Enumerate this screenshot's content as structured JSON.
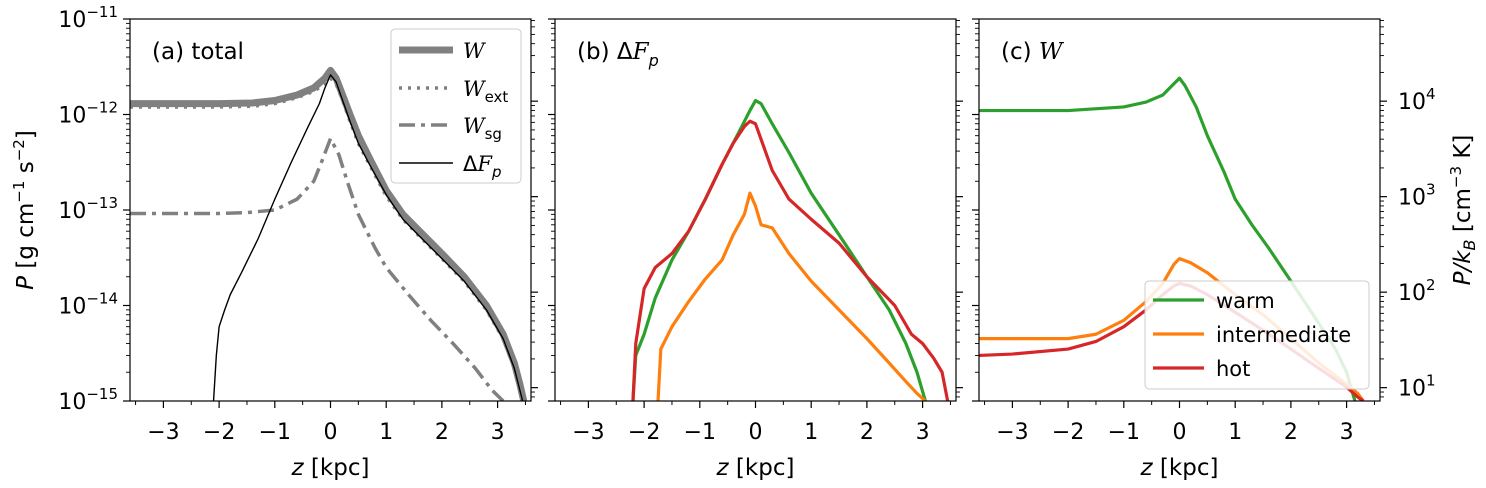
{
  "chart_data": [
    {
      "type": "line",
      "panel": "(a) total",
      "panel_label": "(a) total",
      "xlabel": "z [kpc]",
      "ylabel": "P [g cm⁻¹ s⁻²]",
      "xlim": [
        -3.6,
        3.6
      ],
      "ylim": [
        1e-15,
        1e-11
      ],
      "yscale": "log",
      "x_ticks": [
        -3,
        -2,
        -1,
        0,
        1,
        2,
        3
      ],
      "y_ticks": [
        1e-15,
        1e-14,
        1e-13,
        1e-12,
        1e-11
      ],
      "y_tick_labels": [
        "10⁻¹⁵",
        "10⁻¹⁴",
        "10⁻¹³",
        "10⁻¹²",
        "10⁻¹¹"
      ],
      "legend_position": "top-right",
      "series": [
        {
          "name": "𝒲",
          "color": "#808080",
          "style": "thick-solid",
          "x": [
            -3.6,
            -2.0,
            -1.4,
            -1.0,
            -0.6,
            -0.3,
            -0.1,
            0.0,
            0.1,
            0.2,
            0.35,
            0.5,
            0.7,
            1.0,
            1.3,
            1.6,
            2.0,
            2.4,
            2.8,
            3.1,
            3.3,
            3.4,
            3.47
          ],
          "y": [
            1.3e-12,
            1.3e-12,
            1.32e-12,
            1.4e-12,
            1.6e-12,
            1.9e-12,
            2.4e-12,
            2.9e-12,
            2.4e-12,
            1.7e-12,
            1e-12,
            6e-13,
            3.5e-13,
            1.6e-13,
            9e-14,
            6e-14,
            3.5e-14,
            2e-14,
            1e-14,
            5e-15,
            2.5e-15,
            1.5e-15,
            1e-15
          ]
        },
        {
          "name": "𝒲ext",
          "color": "#808080",
          "style": "dotted",
          "x": [
            -3.6,
            -2.0,
            -1.4,
            -1.0,
            -0.6,
            -0.3,
            -0.1,
            0.0,
            0.1,
            0.2,
            0.35,
            0.5,
            0.7,
            1.0,
            1.3,
            1.6,
            2.0,
            2.4,
            2.8,
            3.1,
            3.3,
            3.4,
            3.45
          ],
          "y": [
            1.2e-12,
            1.2e-12,
            1.22e-12,
            1.3e-12,
            1.5e-12,
            1.75e-12,
            2.1e-12,
            2.4e-12,
            2.1e-12,
            1.5e-12,
            8.5e-13,
            5e-13,
            3e-13,
            1.4e-13,
            8e-14,
            5.3e-14,
            3.1e-14,
            1.8e-14,
            9e-15,
            4.5e-15,
            2.2e-15,
            1.3e-15,
            1e-15
          ]
        },
        {
          "name": "𝒲sg",
          "color": "#808080",
          "style": "dashdot",
          "x": [
            -3.6,
            -2.0,
            -1.5,
            -1.0,
            -0.6,
            -0.3,
            -0.15,
            0.0,
            0.15,
            0.3,
            0.5,
            0.8,
            1.0,
            1.4,
            1.8,
            2.2,
            2.6,
            2.9,
            3.1
          ],
          "y": [
            9.2e-14,
            9.2e-14,
            9.4e-14,
            1e-13,
            1.3e-13,
            2e-13,
            3.3e-13,
            5.6e-13,
            3.8e-13,
            2e-13,
            9e-14,
            4e-14,
            2.5e-14,
            1.3e-14,
            7e-15,
            4e-15,
            2.2e-15,
            1.3e-15,
            1e-15
          ]
        },
        {
          "name": "ΔF_p",
          "color": "#000000",
          "style": "thin-solid",
          "x": [
            -2.1,
            -2.05,
            -2.0,
            -1.9,
            -1.8,
            -1.6,
            -1.3,
            -1.0,
            -0.7,
            -0.4,
            -0.2,
            -0.1,
            0.0,
            0.1,
            0.2,
            0.35,
            0.5,
            0.7,
            1.0,
            1.3,
            1.6,
            2.0,
            2.4,
            2.8,
            3.1,
            3.3,
            3.4,
            3.45
          ],
          "y": [
            1e-15,
            3e-15,
            6e-15,
            9e-15,
            1.3e-14,
            2.2e-14,
            5e-14,
            1.3e-13,
            3.2e-13,
            7.5e-13,
            1.3e-12,
            1.9e-12,
            2.6e-12,
            2.2e-12,
            1.5e-12,
            8.5e-13,
            5e-13,
            3e-13,
            1.45e-13,
            8e-14,
            5.3e-14,
            3.1e-14,
            1.8e-14,
            9e-15,
            4.5e-15,
            2.2e-15,
            1.3e-15,
            1e-15
          ]
        }
      ]
    },
    {
      "type": "line",
      "panel": "(b) ΔF_p",
      "panel_label": "(b) ΔF_p",
      "xlabel": "z [kpc]",
      "xlim": [
        -3.6,
        3.6
      ],
      "ylim": [
        1e-15,
        1e-11
      ],
      "yscale": "log",
      "x_ticks": [
        -3,
        -2,
        -1,
        0,
        1,
        2,
        3
      ],
      "series": [
        {
          "name": "warm",
          "color": "#2ca02c",
          "x": [
            -2.2,
            -2.15,
            -2.0,
            -1.8,
            -1.5,
            -1.2,
            -0.9,
            -0.6,
            -0.3,
            -0.1,
            0.0,
            0.1,
            0.3,
            0.6,
            1.0,
            1.5,
            2.0,
            2.4,
            2.7,
            2.9,
            3.05
          ],
          "y": [
            1e-15,
            3e-15,
            5e-15,
            1.2e-14,
            3e-14,
            6e-14,
            1.3e-13,
            3e-13,
            6.5e-13,
            1.1e-12,
            1.4e-12,
            1.3e-12,
            8e-13,
            4e-13,
            1.5e-13,
            5.5e-14,
            2e-14,
            9e-15,
            4e-15,
            2e-15,
            1e-15
          ]
        },
        {
          "name": "intermediate",
          "color": "#ff7f0e",
          "x": [
            -1.75,
            -1.7,
            -1.5,
            -1.2,
            -0.9,
            -0.6,
            -0.4,
            -0.2,
            -0.1,
            0.0,
            0.1,
            0.3,
            0.6,
            1.0,
            1.5,
            2.0,
            2.4,
            2.7,
            2.9,
            3.05
          ],
          "y": [
            1e-15,
            3.5e-15,
            6e-15,
            1.1e-14,
            1.9e-14,
            3e-14,
            5.5e-14,
            9e-14,
            1.5e-13,
            1.1e-13,
            7e-14,
            6.5e-14,
            3.5e-14,
            1.8e-14,
            9e-15,
            4.5e-15,
            2.5e-15,
            1.6e-15,
            1.2e-15,
            1e-15
          ]
        },
        {
          "name": "hot",
          "color": "#d62728",
          "x": [
            -2.2,
            -2.15,
            -2.0,
            -1.8,
            -1.5,
            -1.2,
            -0.9,
            -0.6,
            -0.4,
            -0.2,
            -0.1,
            0.0,
            0.1,
            0.3,
            0.6,
            1.0,
            1.5,
            2.0,
            2.5,
            2.8,
            3.0,
            3.2,
            3.35,
            3.45
          ],
          "y": [
            1e-15,
            4e-15,
            1.5e-14,
            2.5e-14,
            3.5e-14,
            6e-14,
            1.3e-13,
            3e-13,
            5e-13,
            7.5e-13,
            8.5e-13,
            8e-13,
            5.5e-13,
            2.6e-13,
            1.3e-13,
            8e-14,
            4.5e-14,
            2e-14,
            1e-14,
            5e-15,
            4e-15,
            2.8e-15,
            2e-15,
            1e-15
          ]
        }
      ]
    },
    {
      "type": "line",
      "panel": "(c) 𝒲",
      "panel_label": "(c) 𝒲",
      "xlabel": "z [kpc]",
      "ylabel_right": "P/k_B [cm⁻³ K]",
      "xlim": [
        -3.6,
        3.6
      ],
      "ylim": [
        1e-15,
        1e-11
      ],
      "yscale": "log",
      "x_ticks": [
        -3,
        -2,
        -1,
        0,
        1,
        2,
        3
      ],
      "right_ticks": [
        10,
        100,
        1000,
        10000
      ],
      "right_tick_labels": [
        "10¹",
        "10²",
        "10³",
        "10⁴"
      ],
      "right_ylim": [
        7.25,
        72500
      ],
      "legend_position": "lower-right",
      "series": [
        {
          "name": "warm",
          "color": "#2ca02c",
          "x": [
            -3.6,
            -2.0,
            -1.0,
            -0.6,
            -0.3,
            -0.1,
            0.0,
            0.1,
            0.3,
            0.5,
            0.8,
            1.0,
            1.3,
            1.6,
            2.0,
            2.4,
            2.8,
            3.0,
            3.15
          ],
          "y": [
            1.1e-12,
            1.1e-12,
            1.2e-12,
            1.35e-12,
            1.6e-12,
            2.1e-12,
            2.4e-12,
            2e-12,
            1.2e-12,
            6e-13,
            2.5e-13,
            1.3e-13,
            7e-14,
            4e-14,
            1.8e-14,
            8e-15,
            3.5e-15,
            2e-15,
            1e-15
          ]
        },
        {
          "name": "intermediate",
          "color": "#ff7f0e",
          "x": [
            -3.6,
            -2.0,
            -1.5,
            -1.0,
            -0.6,
            -0.3,
            -0.1,
            0.0,
            0.2,
            0.5,
            1.0,
            1.5,
            2.0,
            2.5,
            3.0,
            3.2,
            3.3
          ],
          "y": [
            4.5e-15,
            4.5e-15,
            5e-15,
            7e-15,
            1.1e-14,
            1.7e-14,
            2.7e-14,
            3.1e-14,
            2.8e-14,
            2.2e-14,
            1.3e-14,
            8e-15,
            4.5e-15,
            2.5e-15,
            1.5e-15,
            1.2e-15,
            1e-15
          ]
        },
        {
          "name": "hot",
          "color": "#d62728",
          "x": [
            -3.6,
            -3.0,
            -2.0,
            -1.5,
            -1.0,
            -0.6,
            -0.3,
            -0.1,
            0.0,
            0.2,
            0.5,
            1.0,
            1.5,
            2.0,
            2.5,
            3.0,
            3.2,
            3.3
          ],
          "y": [
            3e-15,
            3.1e-15,
            3.5e-15,
            4.2e-15,
            6e-15,
            9e-15,
            1.3e-14,
            1.6e-14,
            1.7e-14,
            1.6e-14,
            1.3e-14,
            8.5e-15,
            5.5e-15,
            3.5e-15,
            2.2e-15,
            1.4e-15,
            1.1e-15,
            1e-15
          ]
        }
      ]
    }
  ]
}
